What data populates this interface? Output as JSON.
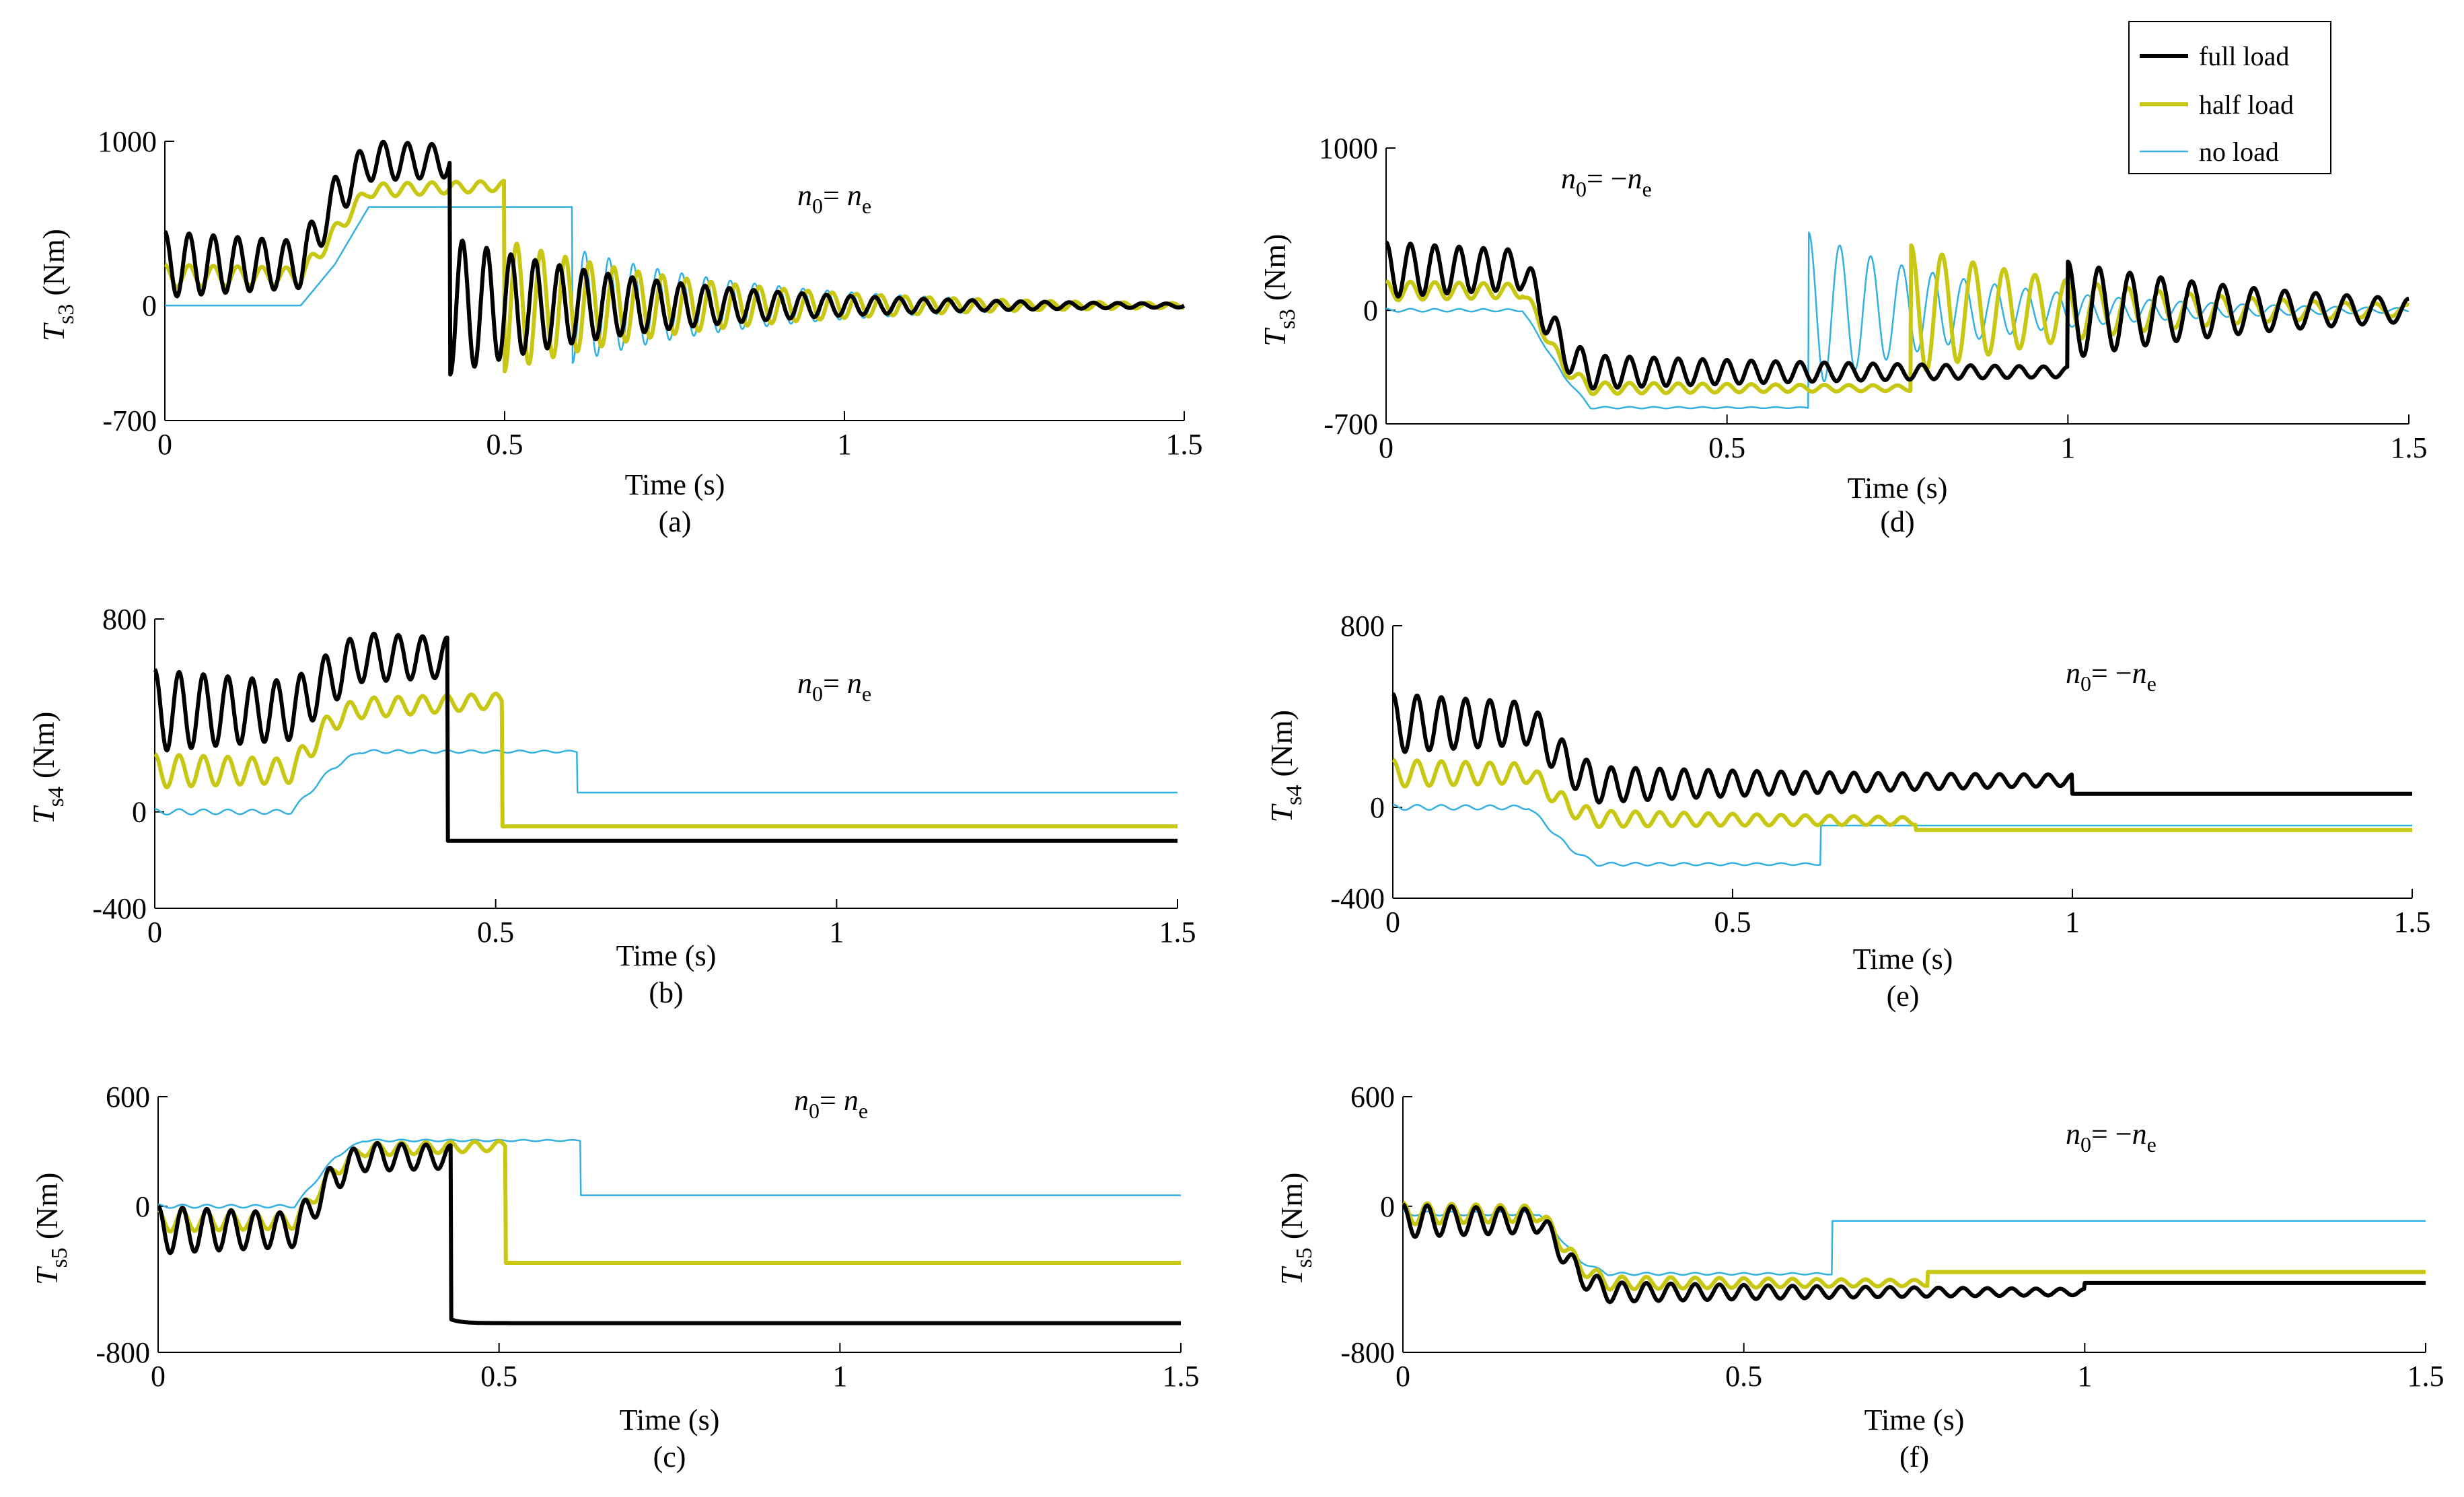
{
  "figure": {
    "legend": {
      "entries": [
        {
          "label": "full load",
          "color": "#000000"
        },
        {
          "label": "half load",
          "color": "#c8c814"
        },
        {
          "label": "no load",
          "color": "#33b0e0"
        }
      ]
    }
  },
  "chart_data": [
    {
      "id": "a",
      "type": "line",
      "caption": "(a)",
      "xlabel": "Time (s)",
      "ylabel_main": "T",
      "ylabel_sub": "s3",
      "ylabel_unit": "(Nm)",
      "annotation_main": "n",
      "annotation_sub0": "0",
      "annotation_eq": "= ",
      "annotation_n": "n",
      "annotation_sube": "e",
      "xlim": [
        0,
        1.5
      ],
      "ylim": [
        -700,
        1000
      ],
      "xticks": [
        0,
        0.5,
        1,
        1.5
      ],
      "xtick_labels": [
        "0",
        "0.5",
        "1",
        "1.5"
      ],
      "yticks": [
        1000,
        0,
        -700
      ],
      "ytick_labels": [
        "1000",
        "0",
        "-700"
      ],
      "series": [
        {
          "name": "no load",
          "color": "#33b0e0",
          "width": 2.5,
          "t1": 0.6,
          "pre": [
            [
              0,
              0
            ],
            [
              0.2,
              0
            ],
            [
              0.25,
              250
            ],
            [
              0.3,
              600
            ],
            [
              0.6,
              600
            ]
          ],
          "osc_pre": 0,
          "step_to": -350,
          "post_amp": 350,
          "post_tau": 0.28,
          "post_freq": 28,
          "final": 0
        },
        {
          "name": "half load",
          "color": "#c8c814",
          "width": 6,
          "t1": 0.5,
          "pre": [
            [
              0,
              180
            ],
            [
              0.2,
              180
            ],
            [
              0.26,
              500
            ],
            [
              0.3,
              700
            ],
            [
              0.5,
              730
            ]
          ],
          "osc_pre": 70,
          "step_to": -530,
          "post_amp": 400,
          "post_tau": 0.3,
          "post_freq": 28,
          "final": 0
        },
        {
          "name": "full load",
          "color": "#000000",
          "width": 6,
          "t1": 0.42,
          "pre": [
            [
              0,
              250
            ],
            [
              0.2,
              250
            ],
            [
              0.25,
              650
            ],
            [
              0.3,
              880
            ],
            [
              0.42,
              880
            ]
          ],
          "osc_pre": 200,
          "step_to": -480,
          "post_amp": 420,
          "post_tau": 0.3,
          "post_freq": 28,
          "final": 0
        }
      ]
    },
    {
      "id": "b",
      "type": "line",
      "caption": "(b)",
      "xlabel": "Time (s)",
      "ylabel_main": "T",
      "ylabel_sub": "s4",
      "ylabel_unit": "(Nm)",
      "annotation_main": "n",
      "annotation_sub0": "0",
      "annotation_eq": "= ",
      "annotation_n": "n",
      "annotation_sube": "e",
      "xlim": [
        0,
        1.5
      ],
      "ylim": [
        -400,
        800
      ],
      "xticks": [
        0,
        0.5,
        1,
        1.5
      ],
      "xtick_labels": [
        "0",
        "0.5",
        "1",
        "1.5"
      ],
      "yticks": [
        800,
        0,
        -400
      ],
      "ytick_labels": [
        "800",
        "0",
        "-400"
      ],
      "series": [
        {
          "name": "no load",
          "color": "#33b0e0",
          "width": 2.5,
          "t1": 0.62,
          "pre": [
            [
              0,
              0
            ],
            [
              0.2,
              0
            ],
            [
              0.26,
              180
            ],
            [
              0.3,
              250
            ],
            [
              0.6,
              250
            ]
          ],
          "osc_pre": 12,
          "step_to": 80,
          "post_amp": 0,
          "post_tau": 0.1,
          "post_freq": 28,
          "final": 80
        },
        {
          "name": "half load",
          "color": "#c8c814",
          "width": 6,
          "t1": 0.51,
          "pre": [
            [
              0,
              170
            ],
            [
              0.2,
              170
            ],
            [
              0.26,
              380
            ],
            [
              0.3,
              430
            ],
            [
              0.5,
              460
            ]
          ],
          "osc_pre": 70,
          "step_to": -60,
          "post_amp": 0,
          "post_tau": 0.1,
          "post_freq": 28,
          "final": -60
        },
        {
          "name": "full load",
          "color": "#000000",
          "width": 6,
          "t1": 0.43,
          "pre": [
            [
              0,
              420
            ],
            [
              0.2,
              420
            ],
            [
              0.26,
              560
            ],
            [
              0.3,
              640
            ],
            [
              0.42,
              640
            ]
          ],
          "osc_pre": 170,
          "step_to": -120,
          "post_amp": 0,
          "post_tau": 0.1,
          "post_freq": 28,
          "final": -120
        }
      ]
    },
    {
      "id": "c",
      "type": "line",
      "caption": "(c)",
      "xlabel": "Time (s)",
      "ylabel_main": "T",
      "ylabel_sub": "s5",
      "ylabel_unit": "(Nm)",
      "annotation_main": "n",
      "annotation_sub0": "0",
      "annotation_eq": "= ",
      "annotation_n": "n",
      "annotation_sube": "e",
      "xlim": [
        0,
        1.5
      ],
      "ylim": [
        -800,
        600
      ],
      "xticks": [
        0,
        0.5,
        1,
        1.5
      ],
      "xtick_labels": [
        "0",
        "0.5",
        "1",
        "1.5"
      ],
      "yticks": [
        600,
        0,
        -800
      ],
      "ytick_labels": [
        "600",
        "0",
        "-800"
      ],
      "series": [
        {
          "name": "no load",
          "color": "#33b0e0",
          "width": 2.5,
          "t1": 0.62,
          "pre": [
            [
              0,
              0
            ],
            [
              0.2,
              0
            ],
            [
              0.26,
              270
            ],
            [
              0.3,
              360
            ],
            [
              0.6,
              360
            ]
          ],
          "osc_pre": 10,
          "step_to": 60,
          "post_amp": 0,
          "post_tau": 0.1,
          "post_freq": 28,
          "final": 60
        },
        {
          "name": "half load",
          "color": "#c8c814",
          "width": 6,
          "t1": 0.51,
          "pre": [
            [
              0,
              -80
            ],
            [
              0.2,
              -80
            ],
            [
              0.26,
              200
            ],
            [
              0.3,
              310
            ],
            [
              0.5,
              330
            ]
          ],
          "osc_pre": 60,
          "step_to": -310,
          "post_amp": 0,
          "post_tau": 0.1,
          "post_freq": 28,
          "final": -310
        },
        {
          "name": "full load",
          "color": "#000000",
          "width": 6,
          "t1": 0.43,
          "pre": [
            [
              0,
              -130
            ],
            [
              0.2,
              -130
            ],
            [
              0.26,
              170
            ],
            [
              0.3,
              270
            ],
            [
              0.42,
              270
            ]
          ],
          "osc_pre": 130,
          "step_to": -620,
          "post_amp": 0,
          "post_tau": 0.1,
          "post_freq": 28,
          "final": -640
        }
      ]
    },
    {
      "id": "d",
      "type": "line",
      "caption": "(d)",
      "xlabel": "Time (s)",
      "ylabel_main": "T",
      "ylabel_sub": "s3",
      "ylabel_unit": "(Nm)",
      "annotation_main": "n",
      "annotation_sub0": "0",
      "annotation_eq": "= −",
      "annotation_n": "n",
      "annotation_sube": "e",
      "xlim": [
        0,
        1.5
      ],
      "ylim": [
        -700,
        1000
      ],
      "xticks": [
        0,
        0.5,
        1,
        1.5
      ],
      "xtick_labels": [
        "0",
        "0.5",
        "1",
        "1.5"
      ],
      "yticks": [
        1000,
        0,
        -700
      ],
      "ytick_labels": [
        "1000",
        "0",
        "-700"
      ],
      "series": [
        {
          "name": "no load",
          "color": "#33b0e0",
          "width": 2.5,
          "t1": 0.62,
          "pre": [
            [
              0,
              0
            ],
            [
              0.2,
              0
            ],
            [
              0.26,
              -400
            ],
            [
              0.3,
              -600
            ],
            [
              0.62,
              -600
            ]
          ],
          "osc_pre": 10,
          "step_to": 480,
          "post_amp": 480,
          "post_tau": 0.25,
          "post_freq": 22,
          "final": 0
        },
        {
          "name": "half load",
          "color": "#c8c814",
          "width": 6,
          "t1": 0.77,
          "pre": [
            [
              0,
              120
            ],
            [
              0.2,
              120
            ],
            [
              0.26,
              -350
            ],
            [
              0.3,
              -480
            ],
            [
              0.77,
              -480
            ]
          ],
          "osc_pre": 60,
          "step_to": 400,
          "post_amp": 400,
          "post_tau": 0.3,
          "post_freq": 22,
          "final": 0
        },
        {
          "name": "full load",
          "color": "#000000",
          "width": 6,
          "t1": 1.0,
          "pre": [
            [
              0,
              250
            ],
            [
              0.2,
              250
            ],
            [
              0.26,
              -250
            ],
            [
              0.3,
              -380
            ],
            [
              1.0,
              -380
            ]
          ],
          "osc_pre": 170,
          "step_to": 300,
          "post_amp": 300,
          "post_tau": 0.35,
          "post_freq": 22,
          "final": 0
        }
      ]
    },
    {
      "id": "e",
      "type": "line",
      "caption": "(e)",
      "xlabel": "Time (s)",
      "ylabel_main": "T",
      "ylabel_sub": "s4",
      "ylabel_unit": "(Nm)",
      "annotation_main": "n",
      "annotation_sub0": "0",
      "annotation_eq": "= −",
      "annotation_n": "n",
      "annotation_sube": "e",
      "xlim": [
        0,
        1.5
      ],
      "ylim": [
        -400,
        800
      ],
      "xticks": [
        0,
        0.5,
        1,
        1.5
      ],
      "xtick_labels": [
        "0",
        "0.5",
        "1",
        "1.5"
      ],
      "yticks": [
        800,
        0,
        -400
      ],
      "ytick_labels": [
        "800",
        "0",
        "-400"
      ],
      "series": [
        {
          "name": "no load",
          "color": "#33b0e0",
          "width": 2.5,
          "t1": 0.63,
          "pre": [
            [
              0,
              0
            ],
            [
              0.2,
              0
            ],
            [
              0.26,
              -180
            ],
            [
              0.3,
              -250
            ],
            [
              0.63,
              -250
            ]
          ],
          "osc_pre": 12,
          "step_to": -80,
          "post_amp": 0,
          "post_tau": 0.1,
          "post_freq": 28,
          "final": -80
        },
        {
          "name": "half load",
          "color": "#c8c814",
          "width": 6,
          "t1": 0.77,
          "pre": [
            [
              0,
              150
            ],
            [
              0.2,
              150
            ],
            [
              0.26,
              0
            ],
            [
              0.3,
              -50
            ],
            [
              0.77,
              -60
            ]
          ],
          "osc_pre": 60,
          "step_to": -100,
          "post_amp": 0,
          "post_tau": 0.1,
          "post_freq": 28,
          "final": -100
        },
        {
          "name": "full load",
          "color": "#000000",
          "width": 6,
          "t1": 1.0,
          "pre": [
            [
              0,
              370
            ],
            [
              0.2,
              370
            ],
            [
              0.26,
              180
            ],
            [
              0.3,
              100
            ],
            [
              1.0,
              120
            ]
          ],
          "osc_pre": 130,
          "step_to": 60,
          "post_amp": 0,
          "post_tau": 0.1,
          "post_freq": 28,
          "final": 60
        }
      ]
    },
    {
      "id": "f",
      "type": "line",
      "caption": "(f)",
      "xlabel": "Time (s)",
      "ylabel_main": "T",
      "ylabel_sub": "s5",
      "ylabel_unit": "(Nm)",
      "annotation_main": "n",
      "annotation_sub0": "0",
      "annotation_eq": "= −",
      "annotation_n": "n",
      "annotation_sube": "e",
      "xlim": [
        0,
        1.5
      ],
      "ylim": [
        -800,
        600
      ],
      "xticks": [
        0,
        0.5,
        1,
        1.5
      ],
      "xtick_labels": [
        "0",
        "0.5",
        "1",
        "1.5"
      ],
      "yticks": [
        600,
        0,
        -800
      ],
      "ytick_labels": [
        "600",
        "0",
        "-800"
      ],
      "series": [
        {
          "name": "no load",
          "color": "#33b0e0",
          "width": 2.5,
          "t1": 0.63,
          "pre": [
            [
              0,
              -40
            ],
            [
              0.2,
              -40
            ],
            [
              0.26,
              -300
            ],
            [
              0.3,
              -370
            ],
            [
              0.63,
              -370
            ]
          ],
          "osc_pre": 12,
          "step_to": -80,
          "post_amp": 0,
          "post_tau": 0.1,
          "post_freq": 28,
          "final": -80
        },
        {
          "name": "half load",
          "color": "#c8c814",
          "width": 6,
          "t1": 0.77,
          "pre": [
            [
              0,
              -40
            ],
            [
              0.2,
              -40
            ],
            [
              0.26,
              -330
            ],
            [
              0.3,
              -420
            ],
            [
              0.77,
              -420
            ]
          ],
          "osc_pre": 60,
          "step_to": -360,
          "post_amp": 0,
          "post_tau": 0.1,
          "post_freq": 28,
          "final": -360
        },
        {
          "name": "full load",
          "color": "#000000",
          "width": 6,
          "t1": 1.0,
          "pre": [
            [
              0,
              -80
            ],
            [
              0.2,
              -80
            ],
            [
              0.26,
              -380
            ],
            [
              0.3,
              -470
            ],
            [
              1.0,
              -470
            ]
          ],
          "osc_pre": 90,
          "step_to": -420,
          "post_amp": 0,
          "post_tau": 0.1,
          "post_freq": 28,
          "final": -420
        }
      ]
    }
  ]
}
